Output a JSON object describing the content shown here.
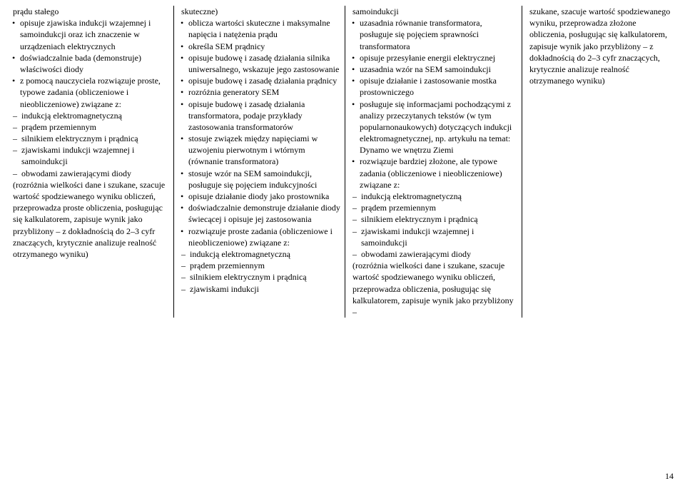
{
  "page_number": "14",
  "columns": [
    {
      "items": [
        {
          "type": "par",
          "text": "prądu stałego"
        },
        {
          "type": "bullet",
          "text": "opisuje zjawiska indukcji wzajemnej i samoindukcji oraz ich znaczenie w urządzeniach elektrycznych"
        },
        {
          "type": "bullet",
          "text": "doświadczalnie bada (demonstruje) właściwości diody"
        },
        {
          "type": "bullet",
          "text": "z pomocą nauczyciela rozwiązuje proste, typowe zadania (obliczeniowe i nieobliczeniowe) związane z:"
        },
        {
          "type": "dash",
          "text": "indukcją elektromagnetyczną"
        },
        {
          "type": "dash",
          "text": "prądem przemiennym"
        },
        {
          "type": "dash",
          "text": "silnikiem elektrycznym i prądnicą"
        },
        {
          "type": "dash",
          "text": "zjawiskami indukcji wzajemnej i samoindukcji"
        },
        {
          "type": "dash",
          "text": "obwodami zawierającymi diody"
        },
        {
          "type": "par",
          "text": "(rozróżnia wielkości dane i szukane, szacuje wartość spodziewanego wyniku obliczeń, przeprowadza proste obliczenia, posługując się kalkulatorem, zapisuje wynik jako przybliżony – z dokładnością do 2–3 cyfr znaczących, krytycznie analizuje realność otrzymanego wyniku)"
        }
      ]
    },
    {
      "items": [
        {
          "type": "par",
          "text": "skuteczne)"
        },
        {
          "type": "bullet",
          "text": "oblicza wartości skuteczne i maksymalne napięcia i natężenia prądu"
        },
        {
          "type": "bullet",
          "text": "określa SEM prądnicy"
        },
        {
          "type": "bullet",
          "text": "opisuje budowę i zasadę działania silnika uniwersalnego, wskazuje jego zastosowanie"
        },
        {
          "type": "bullet",
          "text": "opisuje budowę i zasadę działania prądnicy"
        },
        {
          "type": "bullet",
          "text": "rozróżnia generatory SEM"
        },
        {
          "type": "bullet",
          "text": "opisuje budowę i zasadę działania transformatora, podaje przykłady zastosowania transformatorów"
        },
        {
          "type": "bullet",
          "text": "stosuje związek między napięciami w uzwojeniu pierwotnym i wtórnym (równanie transformatora)"
        },
        {
          "type": "bullet",
          "text": "stosuje wzór na SEM samoindukcji, posługuje się pojęciem indukcyjności"
        },
        {
          "type": "bullet",
          "text": "opisuje działanie diody jako prostownika"
        },
        {
          "type": "bullet",
          "text": "doświadczalnie demonstruje działanie diody świecącej i opisuje jej zastosowania"
        },
        {
          "type": "bullet",
          "text": "rozwiązuje proste zadania (obliczeniowe i nieobliczeniowe) związane z:"
        },
        {
          "type": "dash",
          "text": "indukcją elektromagnetyczną"
        },
        {
          "type": "dash",
          "text": "prądem przemiennym"
        },
        {
          "type": "dash",
          "text": "silnikiem elektrycznym i prądnicą"
        },
        {
          "type": "dash",
          "text": "zjawiskami indukcji"
        }
      ]
    },
    {
      "items": [
        {
          "type": "par",
          "text": "samoindukcji"
        },
        {
          "type": "bullet",
          "text": "uzasadnia równanie transformatora, posługuje się pojęciem sprawności transformatora"
        },
        {
          "type": "bullet",
          "text": "opisuje przesyłanie energii elektrycznej"
        },
        {
          "type": "bullet",
          "text": "uzasadnia wzór na SEM samoindukcji"
        },
        {
          "type": "bullet",
          "text": "opisuje działanie i zastosowanie mostka prostowniczego"
        },
        {
          "type": "bullet",
          "text": "posługuje się informacjami pochodzącymi z analizy przeczytanych tekstów (w tym popularnonaukowych) dotyczących indukcji elektromagnetycznej, np. artykułu na temat: Dynamo we wnętrzu Ziemi"
        },
        {
          "type": "bullet",
          "text": "rozwiązuje bardziej złożone, ale typowe zadania (obliczeniowe i nieobliczeniowe) związane z:"
        },
        {
          "type": "dash",
          "text": "indukcją elektromagnetyczną"
        },
        {
          "type": "dash",
          "text": "prądem przemiennym"
        },
        {
          "type": "dash",
          "text": "silnikiem elektrycznym i prądnicą"
        },
        {
          "type": "dash",
          "text": "zjawiskami indukcji wzajemnej i samoindukcji"
        },
        {
          "type": "dash",
          "text": "obwodami zawierającymi diody"
        },
        {
          "type": "par",
          "text": "(rozróżnia wielkości dane i szukane, szacuje wartość spodziewanego wyniku obliczeń, przeprowadza obliczenia, posługując się kalkulatorem, zapisuje wynik jako przybliżony –"
        }
      ]
    },
    {
      "items": [
        {
          "type": "par",
          "text": "szukane, szacuje wartość spodziewanego wyniku, przeprowadza złożone obliczenia, posługując się kalkulatorem, zapisuje wynik jako przybliżony – z dokładnością do 2–3 cyfr znaczących, krytycznie analizuje realność otrzymanego wyniku)"
        }
      ]
    }
  ]
}
